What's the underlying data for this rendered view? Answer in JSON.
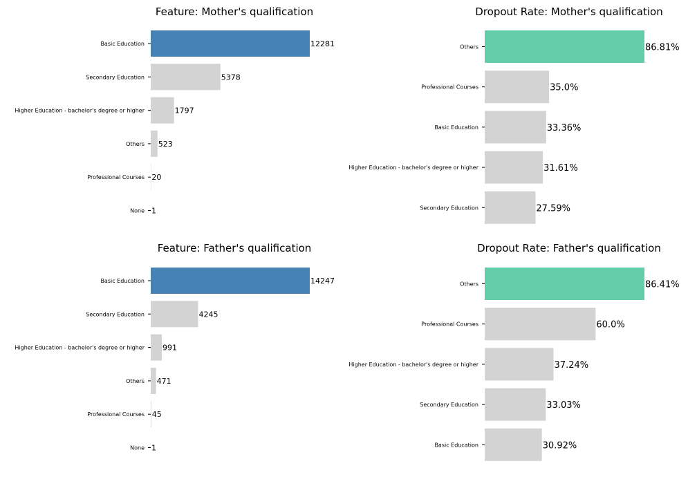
{
  "colors": {
    "count_highlight": "#4682b4",
    "rate_highlight": "#66cdaa",
    "default_bar": "#d3d3d3"
  },
  "chart_data": [
    {
      "type": "bar",
      "orientation": "horizontal",
      "title": "Feature: Mother's qualification",
      "categories": [
        "Basic Education",
        "Secondary Education",
        "Higher Education - bachelor's degree or higher",
        "Others",
        "Professional Courses",
        "None"
      ],
      "values": [
        12281,
        5378,
        1797,
        523,
        20,
        1
      ],
      "value_labels": [
        "12281",
        "5378",
        "1797",
        "523",
        "20",
        "1"
      ],
      "xlim": [
        0,
        12281
      ],
      "highlight_index": 0,
      "highlight_color": "#4682b4"
    },
    {
      "type": "bar",
      "orientation": "horizontal",
      "title": "Dropout Rate: Mother's qualification",
      "categories": [
        "Others",
        "Professional Courses",
        "Basic Education",
        "Higher Education - bachelor's degree or higher",
        "Secondary Education"
      ],
      "values": [
        86.81,
        35.0,
        33.36,
        31.61,
        27.59
      ],
      "value_labels": [
        "86.81%",
        "35.0%",
        "33.36%",
        "31.61%",
        "27.59%"
      ],
      "xlim": [
        0,
        86.81
      ],
      "highlight_index": 0,
      "highlight_color": "#66cdaa"
    },
    {
      "type": "bar",
      "orientation": "horizontal",
      "title": "Feature: Father's qualification",
      "categories": [
        "Basic Education",
        "Secondary Education",
        "Higher Education - bachelor's degree or higher",
        "Others",
        "Professional Courses",
        "None"
      ],
      "values": [
        14247,
        4245,
        991,
        471,
        45,
        1
      ],
      "value_labels": [
        "14247",
        "4245",
        "991",
        "471",
        "45",
        "1"
      ],
      "xlim": [
        0,
        14247
      ],
      "highlight_index": 0,
      "highlight_color": "#4682b4"
    },
    {
      "type": "bar",
      "orientation": "horizontal",
      "title": "Dropout Rate: Father's qualification",
      "categories": [
        "Others",
        "Professional Courses",
        "Higher Education - bachelor's degree or higher",
        "Secondary Education",
        "Basic Education"
      ],
      "values": [
        86.41,
        60.0,
        37.24,
        33.03,
        30.92
      ],
      "value_labels": [
        "86.41%",
        "60.0%",
        "37.24%",
        "33.03%",
        "30.92%"
      ],
      "xlim": [
        0,
        86.41
      ],
      "highlight_index": 0,
      "highlight_color": "#66cdaa"
    }
  ]
}
